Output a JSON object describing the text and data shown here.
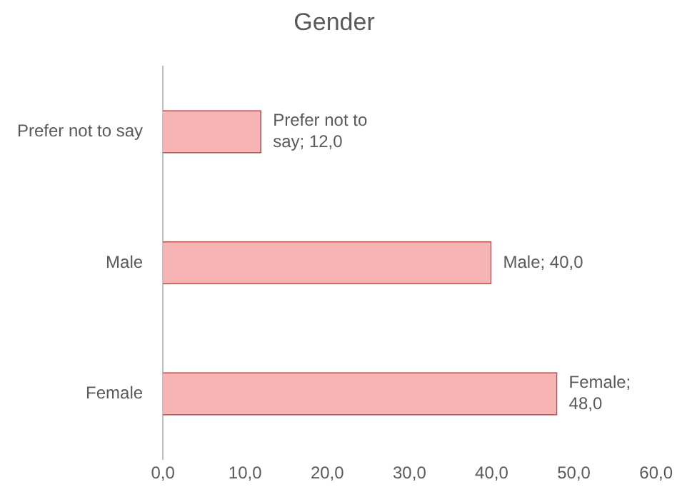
{
  "chart_data": {
    "type": "bar",
    "orientation": "horizontal",
    "title": "Gender",
    "categories": [
      "Prefer not to say",
      "Male",
      "Female"
    ],
    "values": [
      12,
      40,
      48
    ],
    "color": "#f6b4b4",
    "value_labels": [
      "Prefer not to say; 12,0",
      "Male; 40,0",
      "Female; 48,0"
    ],
    "xlim": [
      0,
      60
    ],
    "xticks": [
      {
        "value": 0,
        "label": "0,0"
      },
      {
        "value": 10,
        "label": "10,0"
      },
      {
        "value": 20,
        "label": "20,0"
      },
      {
        "value": 30,
        "label": "30,0"
      },
      {
        "value": 40,
        "label": "40,0"
      },
      {
        "value": 50,
        "label": "50,0"
      },
      {
        "value": 60,
        "label": "60,0"
      }
    ],
    "grid": false,
    "legend": false
  }
}
